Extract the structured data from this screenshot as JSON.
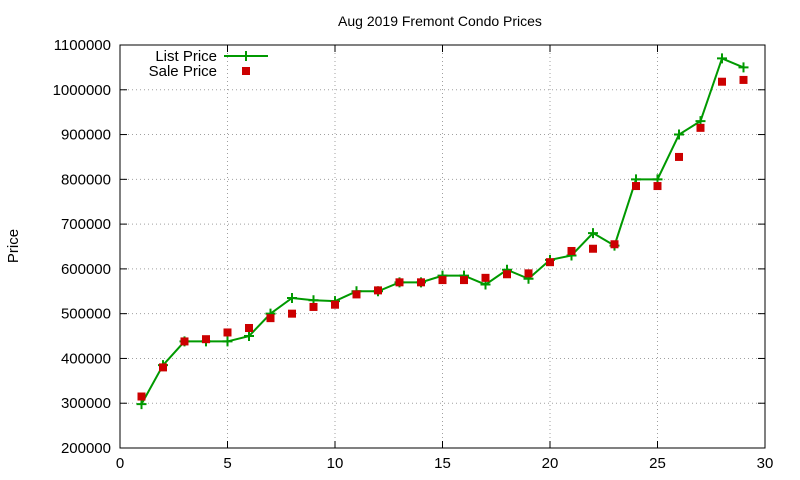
{
  "chart_data": {
    "type": "line",
    "title": "Aug 2019 Fremont Condo Prices",
    "xlabel": "",
    "ylabel": "Price",
    "xlim": [
      0,
      30
    ],
    "ylim": [
      200000,
      1100000
    ],
    "x_ticks": [
      0,
      5,
      10,
      15,
      20,
      25,
      30
    ],
    "y_ticks": [
      200000,
      300000,
      400000,
      500000,
      600000,
      700000,
      800000,
      900000,
      1000000,
      1100000
    ],
    "grid": true,
    "legend_position": "top-left",
    "series": [
      {
        "name": "List Price",
        "style": "lines+crosses",
        "color": "#009900",
        "x": [
          1,
          2,
          3,
          4,
          5,
          6,
          7,
          8,
          9,
          10,
          11,
          12,
          13,
          14,
          15,
          16,
          17,
          18,
          19,
          20,
          21,
          22,
          23,
          24,
          25,
          26,
          27,
          28,
          29
        ],
        "values": [
          298000,
          385000,
          438000,
          438000,
          438000,
          450000,
          500000,
          535000,
          530000,
          528000,
          550000,
          550000,
          570000,
          570000,
          585000,
          585000,
          565000,
          598000,
          578000,
          620000,
          630000,
          680000,
          652000,
          800000,
          800000,
          900000,
          930000,
          1070000,
          1050000
        ]
      },
      {
        "name": "Sale Price",
        "style": "points",
        "color": "#cc0000",
        "x": [
          1,
          2,
          3,
          4,
          5,
          6,
          7,
          8,
          9,
          10,
          11,
          12,
          13,
          14,
          15,
          16,
          17,
          18,
          19,
          20,
          21,
          22,
          23,
          24,
          25,
          26,
          27,
          28,
          29
        ],
        "values": [
          315000,
          380000,
          438000,
          443000,
          458000,
          468000,
          490000,
          500000,
          515000,
          520000,
          543000,
          552000,
          570000,
          570000,
          575000,
          575000,
          580000,
          588000,
          590000,
          615000,
          640000,
          645000,
          655000,
          785000,
          785000,
          850000,
          915000,
          1018000,
          1022000
        ]
      }
    ]
  }
}
